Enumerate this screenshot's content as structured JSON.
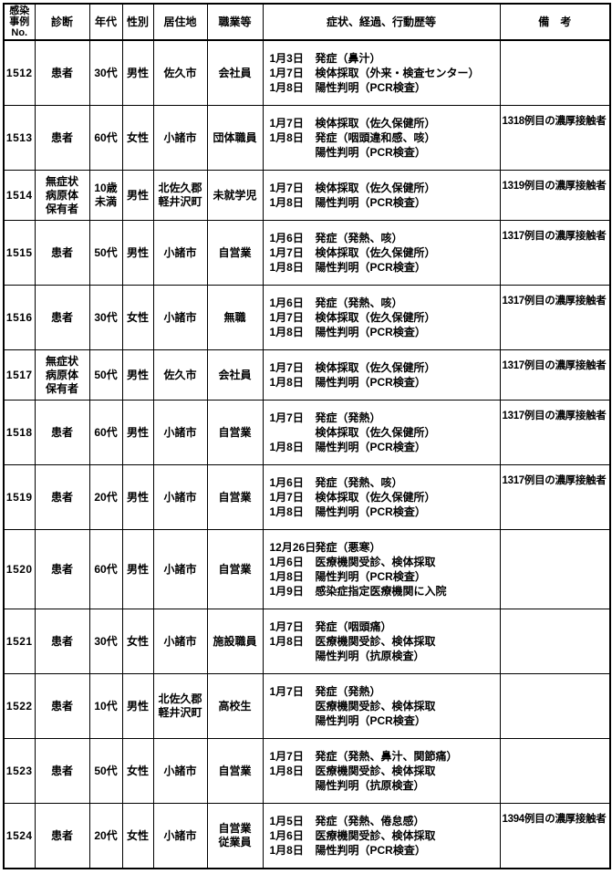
{
  "table": {
    "headers": {
      "no": "感染\n事例\nNo.",
      "diagnosis": "診断",
      "age": "年代",
      "sex": "性別",
      "residence": "居住地",
      "occupation": "職業等",
      "symptoms": "症状、経過、行動歴等",
      "remarks": "備　考"
    },
    "rows": [
      {
        "no": "1512",
        "diagnosis": "患者",
        "age": "30代",
        "sex": "男性",
        "residence": "佐久市",
        "occupation": "会社員",
        "timeline": [
          {
            "date": "1月3日",
            "text": "発症（鼻汁）"
          },
          {
            "date": "1月7日",
            "text": "検体採取（外来・検査センター）"
          },
          {
            "date": "1月8日",
            "text": "陽性判明（PCR検査）"
          }
        ],
        "remark": ""
      },
      {
        "no": "1513",
        "diagnosis": "患者",
        "age": "60代",
        "sex": "女性",
        "residence": "小諸市",
        "occupation": "団体職員",
        "timeline": [
          {
            "date": "1月7日",
            "text": "検体採取（佐久保健所）"
          },
          {
            "date": "1月8日",
            "text": "発症（咽頭違和感、咳）"
          },
          {
            "date": "",
            "text": "陽性判明（PCR検査）"
          }
        ],
        "remark": "1318例目の濃厚接触者"
      },
      {
        "no": "1514",
        "diagnosis": "無症状\n病原体\n保有者",
        "age": "10歳\n未満",
        "sex": "男性",
        "residence": "北佐久郡\n軽井沢町",
        "occupation": "未就学児",
        "timeline": [
          {
            "date": "1月7日",
            "text": "検体採取（佐久保健所）"
          },
          {
            "date": "1月8日",
            "text": "陽性判明（PCR検査）"
          }
        ],
        "remark": "1319例目の濃厚接触者"
      },
      {
        "no": "1515",
        "diagnosis": "患者",
        "age": "50代",
        "sex": "男性",
        "residence": "小諸市",
        "occupation": "自営業",
        "timeline": [
          {
            "date": "1月6日",
            "text": "発症（発熱、咳）"
          },
          {
            "date": "1月7日",
            "text": "検体採取（佐久保健所）"
          },
          {
            "date": "1月8日",
            "text": "陽性判明（PCR検査）"
          }
        ],
        "remark": "1317例目の濃厚接触者"
      },
      {
        "no": "1516",
        "diagnosis": "患者",
        "age": "30代",
        "sex": "女性",
        "residence": "小諸市",
        "occupation": "無職",
        "timeline": [
          {
            "date": "1月6日",
            "text": "発症（発熱、咳）"
          },
          {
            "date": "1月7日",
            "text": "検体採取（佐久保健所）"
          },
          {
            "date": "1月8日",
            "text": "陽性判明（PCR検査）"
          }
        ],
        "remark": "1317例目の濃厚接触者"
      },
      {
        "no": "1517",
        "diagnosis": "無症状\n病原体\n保有者",
        "age": "50代",
        "sex": "男性",
        "residence": "佐久市",
        "occupation": "会社員",
        "timeline": [
          {
            "date": "1月7日",
            "text": "検体採取（佐久保健所）"
          },
          {
            "date": "1月8日",
            "text": "陽性判明（PCR検査）"
          }
        ],
        "remark": "1317例目の濃厚接触者"
      },
      {
        "no": "1518",
        "diagnosis": "患者",
        "age": "60代",
        "sex": "男性",
        "residence": "小諸市",
        "occupation": "自営業",
        "timeline": [
          {
            "date": "1月7日",
            "text": "発症（発熱）"
          },
          {
            "date": "",
            "text": "検体採取（佐久保健所）"
          },
          {
            "date": "1月8日",
            "text": "陽性判明（PCR検査）"
          }
        ],
        "remark": "1317例目の濃厚接触者"
      },
      {
        "no": "1519",
        "diagnosis": "患者",
        "age": "20代",
        "sex": "男性",
        "residence": "小諸市",
        "occupation": "自営業",
        "timeline": [
          {
            "date": "1月6日",
            "text": "発症（発熱、咳）"
          },
          {
            "date": "1月7日",
            "text": "検体採取（佐久保健所）"
          },
          {
            "date": "1月8日",
            "text": "陽性判明（PCR検査）"
          }
        ],
        "remark": "1317例目の濃厚接触者"
      },
      {
        "no": "1520",
        "diagnosis": "患者",
        "age": "60代",
        "sex": "男性",
        "residence": "小諸市",
        "occupation": "自営業",
        "timeline": [
          {
            "date": "12月26日",
            "text": "発症（悪寒）"
          },
          {
            "date": "1月6日",
            "text": "医療機関受診、検体採取"
          },
          {
            "date": "1月8日",
            "text": "陽性判明（PCR検査）"
          },
          {
            "date": "1月9日",
            "text": "感染症指定医療機関に入院"
          }
        ],
        "remark": ""
      },
      {
        "no": "1521",
        "diagnosis": "患者",
        "age": "30代",
        "sex": "女性",
        "residence": "小諸市",
        "occupation": "施設職員",
        "timeline": [
          {
            "date": "1月7日",
            "text": "発症（咽頭痛）"
          },
          {
            "date": "1月8日",
            "text": "医療機関受診、検体採取"
          },
          {
            "date": "",
            "text": "陽性判明（抗原検査）"
          }
        ],
        "remark": ""
      },
      {
        "no": "1522",
        "diagnosis": "患者",
        "age": "10代",
        "sex": "男性",
        "residence": "北佐久郡\n軽井沢町",
        "occupation": "高校生",
        "timeline": [
          {
            "date": "1月7日",
            "text": "発症（発熱）"
          },
          {
            "date": "",
            "text": "医療機関受診、検体採取"
          },
          {
            "date": "",
            "text": "陽性判明（PCR検査）"
          }
        ],
        "remark": ""
      },
      {
        "no": "1523",
        "diagnosis": "患者",
        "age": "50代",
        "sex": "女性",
        "residence": "小諸市",
        "occupation": "自営業",
        "timeline": [
          {
            "date": "1月7日",
            "text": "発症（発熱、鼻汁、関節痛）"
          },
          {
            "date": "1月8日",
            "text": "医療機関受診、検体採取"
          },
          {
            "date": "",
            "text": "陽性判明（抗原検査）"
          }
        ],
        "remark": ""
      },
      {
        "no": "1524",
        "diagnosis": "患者",
        "age": "20代",
        "sex": "女性",
        "residence": "小諸市",
        "occupation": "自営業\n従業員",
        "timeline": [
          {
            "date": "1月5日",
            "text": "発症（発熱、倦怠感）"
          },
          {
            "date": "1月6日",
            "text": "医療機関受診、検体採取"
          },
          {
            "date": "1月8日",
            "text": "陽性判明（PCR検査）"
          }
        ],
        "remark": "1394例目の濃厚接触者"
      }
    ]
  }
}
